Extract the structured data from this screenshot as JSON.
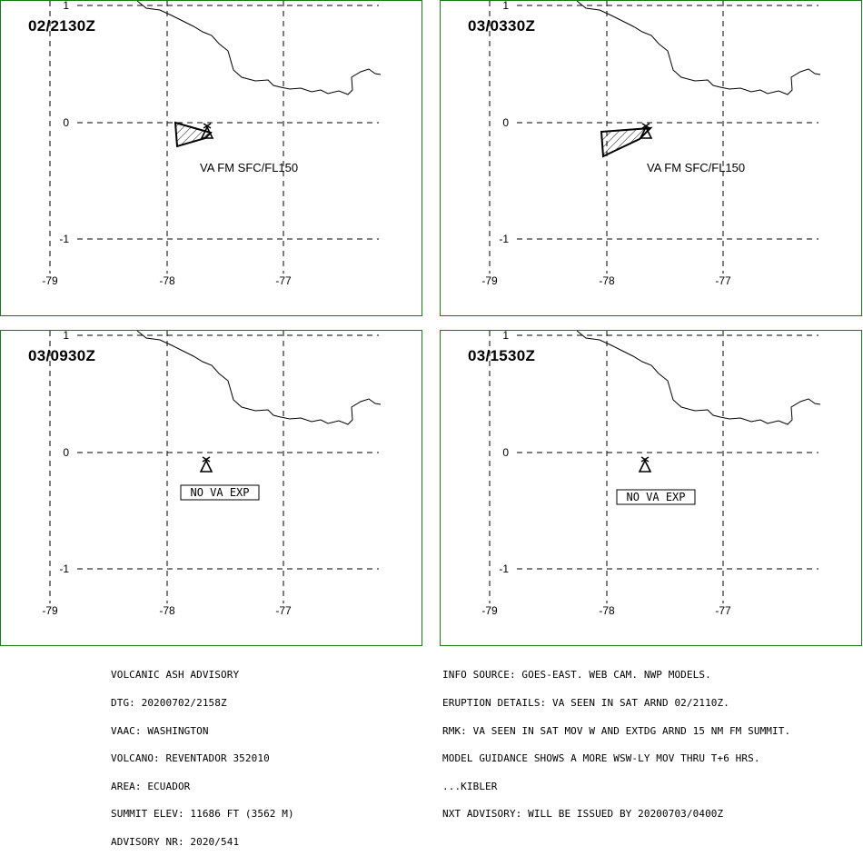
{
  "panels": [
    {
      "time": "02/2130Z",
      "label": "VA FM SFC/FL150",
      "has_ash": true
    },
    {
      "time": "03/0330Z",
      "label": "VA FM SFC/FL150",
      "has_ash": true
    },
    {
      "time": "03/0930Z",
      "label": "NO VA EXP",
      "has_ash": false
    },
    {
      "time": "03/1530Z",
      "label": "NO VA EXP",
      "has_ash": false
    }
  ],
  "axes": {
    "lat_labels": [
      "1",
      "0",
      "-1"
    ],
    "lon_labels": [
      "-79",
      "-78",
      "-77"
    ]
  },
  "advisory_left": [
    "VOLCANIC ASH ADVISORY",
    "DTG: 20200702/2158Z",
    "VAAC: WASHINGTON",
    "VOLCANO: REVENTADOR 352010",
    "AREA: ECUADOR",
    "SUMMIT ELEV: 11686 FT (3562 M)",
    "ADVISORY NR: 2020/541"
  ],
  "advisory_right": [
    "INFO SOURCE: GOES-EAST. WEB CAM. NWP MODELS.",
    "ERUPTION DETAILS: VA SEEN IN SAT ARND 02/2110Z.",
    "RMK: VA SEEN IN SAT MOV W AND EXTDG ARND 15 NM FM SUMMIT.",
    "MODEL GUIDANCE SHOWS A MORE WSW-LY MOV THRU T+6 HRS.",
    "...KIBLER",
    "NXT ADVISORY: WILL BE ISSUED BY 20200703/0400Z"
  ],
  "colors": {
    "panel_border": "#1a7a1a",
    "ash_fill": "#ffffff",
    "lines": "#000000"
  },
  "icons": {
    "volcano": "volcano-icon"
  }
}
